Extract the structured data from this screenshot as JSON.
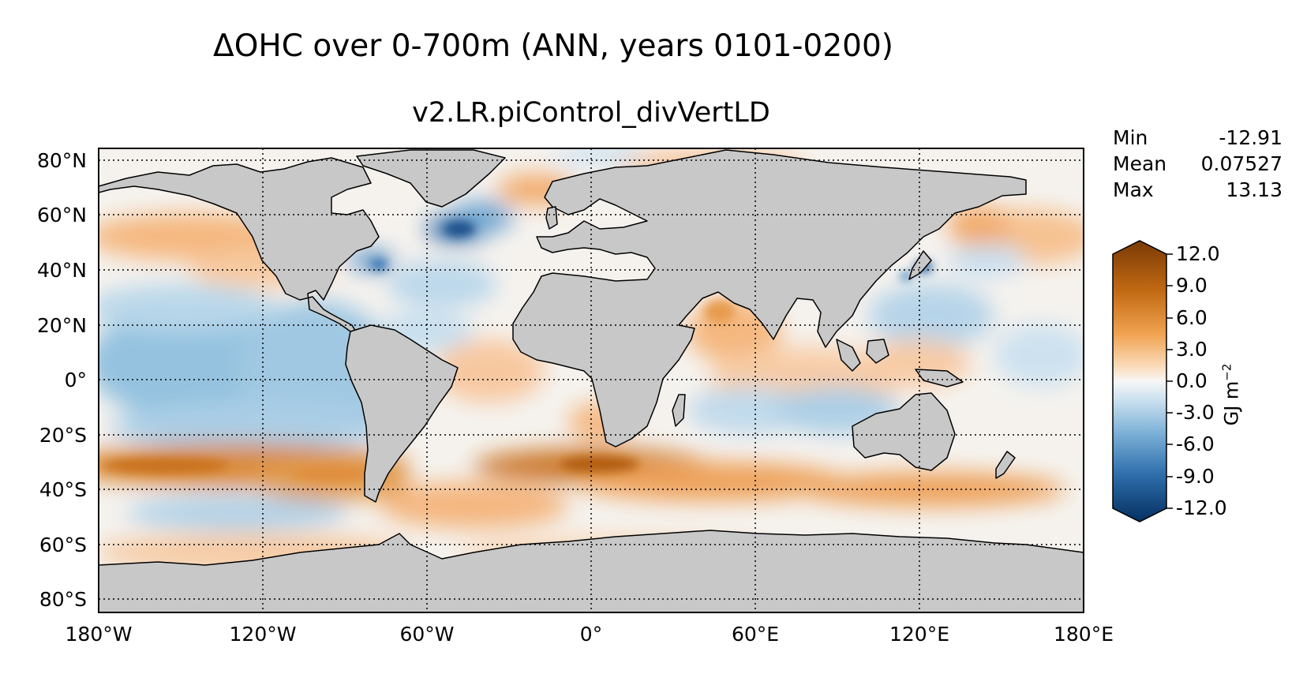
{
  "title": "ΔOHC over 0-700m (ANN, years 0101-0200)",
  "subtitle": "v2.LR.piControl_divVertLD",
  "stats": {
    "min_label": "Min",
    "min_value": "-12.91",
    "mean_label": "Mean",
    "mean_value": "0.07527",
    "max_label": "Max",
    "max_value": "13.13"
  },
  "axes": {
    "lon_ticks": [
      "180°W",
      "120°W",
      "60°W",
      "0°",
      "60°E",
      "120°E",
      "180°E"
    ],
    "lat_ticks": [
      "80°N",
      "60°N",
      "40°N",
      "20°N",
      "0°",
      "20°S",
      "40°S",
      "60°S",
      "80°S"
    ],
    "lon_values": [
      -180,
      -120,
      -60,
      0,
      60,
      120,
      180
    ],
    "lat_values": [
      80,
      60,
      40,
      20,
      0,
      -20,
      -40,
      -60,
      -80
    ]
  },
  "colorbar": {
    "labels": [
      "12.0",
      "9.0",
      "6.0",
      "3.0",
      "0.0",
      "-3.0",
      "-6.0",
      "-9.0",
      "-12.0"
    ],
    "values": [
      12,
      9,
      6,
      3,
      0,
      -3,
      -6,
      -9,
      -12
    ],
    "units_main": "GJ m",
    "units_exp": "−2",
    "colors": {
      "neg_max": "#053061",
      "neg_mid": "#4393c3",
      "neg_low": "#d1e5f0",
      "zero": "#f7f7f7",
      "pos_low": "#fddbc7",
      "pos_mid": "#f4a582",
      "pos_mid2": "#d6863a",
      "pos_max": "#7a3a05"
    }
  },
  "colors": {
    "land": "#c8c8c8",
    "ocean_bg": "#f6f3ef"
  }
}
